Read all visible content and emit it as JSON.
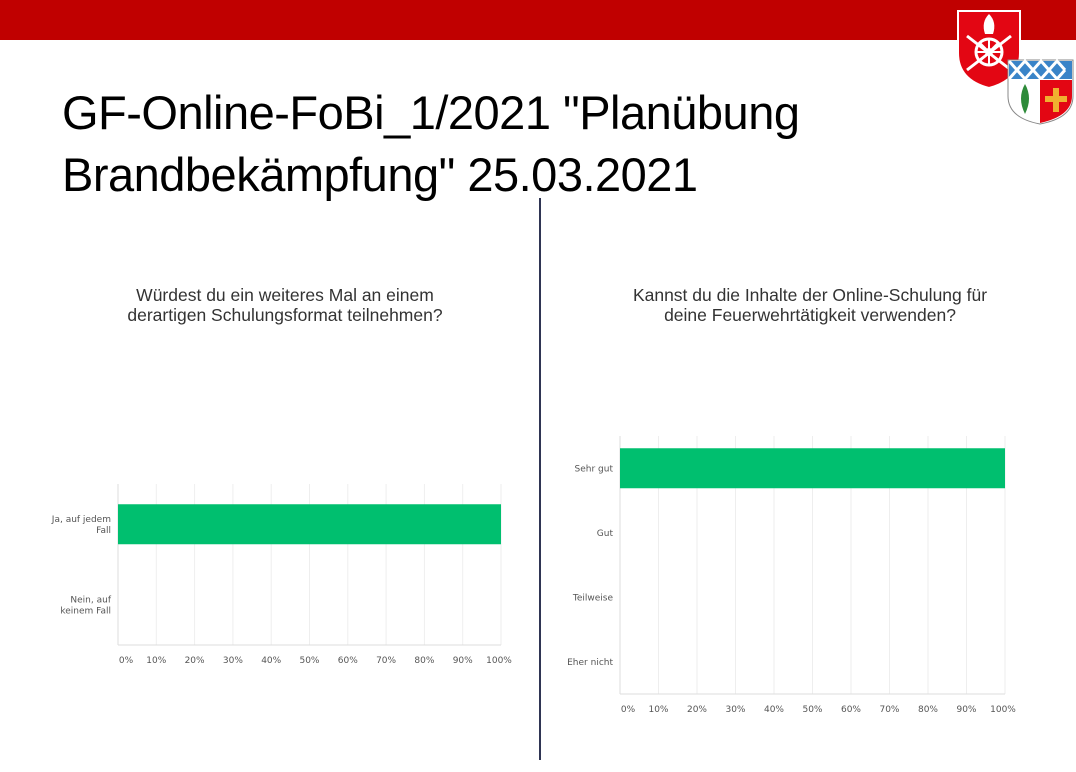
{
  "slide": {
    "title_line1": "GF-Online-FoBi_1/2021 \"Planübung",
    "title_line2": "Brandbekämpfung\" 25.03.2021"
  },
  "colors": {
    "top_bar": "#c00000",
    "bar": "#00bf6f",
    "divider": "#2f3553"
  },
  "logos": [
    "fire-brigade-coat-of-arms",
    "district-coat-of-arms"
  ],
  "chart_data": [
    {
      "type": "bar",
      "orientation": "horizontal",
      "title_line1": "Würdest du ein weiteres Mal an einem",
      "title_line2": "derartigen Schulungsformat  teilnehmen?",
      "categories": [
        [
          "Ja, auf jedem",
          "Fall"
        ],
        [
          "Nein, auf",
          "keinem Fall"
        ]
      ],
      "values": [
        100,
        0
      ],
      "xlim": [
        0,
        100
      ],
      "xticks": [
        "0%",
        "10%",
        "20%",
        "30%",
        "40%",
        "50%",
        "60%",
        "70%",
        "80%",
        "90%",
        "100%"
      ],
      "grid": true
    },
    {
      "type": "bar",
      "orientation": "horizontal",
      "title_line1": "Kannst du die Inhalte der Online-Schulung  für",
      "title_line2": "deine Feuerwehrtätigkeit verwenden?",
      "categories": [
        [
          "Sehr gut"
        ],
        [
          "Gut"
        ],
        [
          "Teilweise"
        ],
        [
          "Eher nicht"
        ]
      ],
      "values": [
        100,
        0,
        0,
        0
      ],
      "xlim": [
        0,
        100
      ],
      "xticks": [
        "0%",
        "10%",
        "20%",
        "30%",
        "40%",
        "50%",
        "60%",
        "70%",
        "80%",
        "90%",
        "100%"
      ],
      "grid": true
    }
  ]
}
